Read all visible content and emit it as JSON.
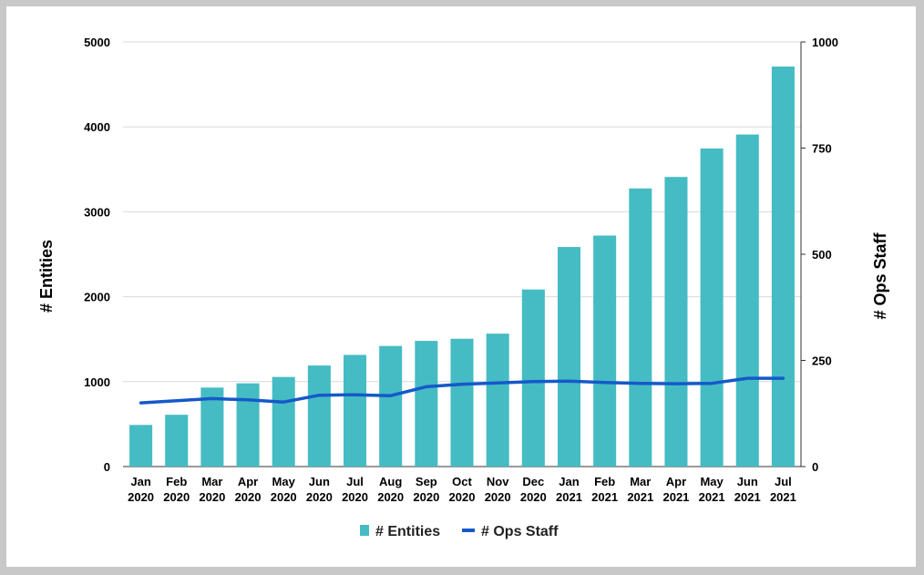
{
  "chart_data": {
    "type": "bar",
    "categories": [
      [
        "Jan",
        "2020"
      ],
      [
        "Feb",
        "2020"
      ],
      [
        "Mar",
        "2020"
      ],
      [
        "Apr",
        "2020"
      ],
      [
        "May",
        "2020"
      ],
      [
        "Jun",
        "2020"
      ],
      [
        "Jul",
        "2020"
      ],
      [
        "Aug",
        "2020"
      ],
      [
        "Sep",
        "2020"
      ],
      [
        "Oct",
        "2020"
      ],
      [
        "Nov",
        "2020"
      ],
      [
        "Dec",
        "2020"
      ],
      [
        "Jan",
        "2021"
      ],
      [
        "Feb",
        "2021"
      ],
      [
        "Mar",
        "2021"
      ],
      [
        "Apr",
        "2021"
      ],
      [
        "May",
        "2021"
      ],
      [
        "Jun",
        "2021"
      ],
      [
        "Jul",
        "2021"
      ]
    ],
    "series": [
      {
        "name": "# Entities",
        "type": "bar",
        "axis": "left",
        "color": "#45bcc4",
        "values": [
          490,
          610,
          930,
          980,
          1055,
          1190,
          1315,
          1420,
          1480,
          1505,
          1565,
          2085,
          2585,
          2720,
          3275,
          3410,
          3745,
          3910,
          4710
        ]
      },
      {
        "name": "# Ops Staff",
        "type": "line",
        "axis": "right",
        "color": "#1559c9",
        "values": [
          150,
          155,
          160,
          157,
          152,
          168,
          169,
          167,
          188,
          194,
          197,
          200,
          201,
          198,
          196,
          195,
          196,
          208,
          208
        ]
      }
    ],
    "ylabel": "# Entities",
    "y2label": "# Ops Staff",
    "ylim": [
      0,
      5000
    ],
    "y2lim": [
      0,
      1000
    ],
    "yticks": [
      0,
      1000,
      2000,
      3000,
      4000,
      5000
    ],
    "y2ticks": [
      0,
      250,
      500,
      750,
      1000
    ],
    "grid": true,
    "legend_position": "bottom"
  }
}
